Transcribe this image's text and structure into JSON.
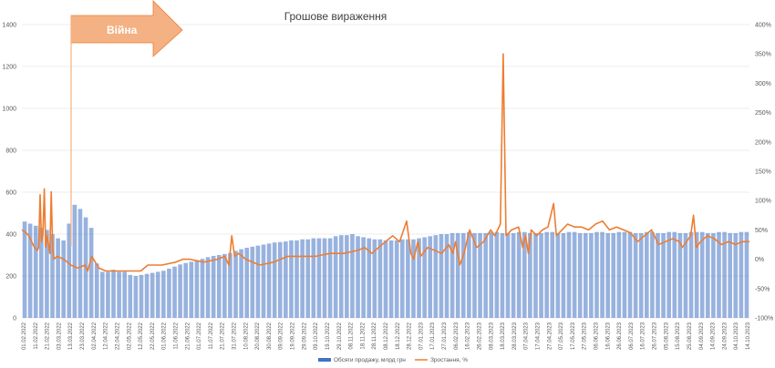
{
  "chart_data": {
    "type": "bar",
    "title": "Грошове вираження",
    "annotation": "Війна",
    "y_left": {
      "min": 0,
      "max": 1400,
      "ticks": [
        0,
        200,
        400,
        600,
        800,
        1000,
        1200,
        1400
      ]
    },
    "y_right": {
      "min": -100,
      "max": 400,
      "ticks": [
        "-100%",
        "-50%",
        "0%",
        "50%",
        "100%",
        "150%",
        "200%",
        "250%",
        "300%",
        "350%",
        "400%"
      ]
    },
    "x_ticks": [
      "01.02.2022",
      "11.02.2022",
      "21.02.2022",
      "03.03.2022",
      "13.03.2022",
      "23.03.2022",
      "02.04.2022",
      "12.04.2022",
      "22.04.2022",
      "02.05.2022",
      "12.05.2022",
      "22.05.2022",
      "01.06.2022",
      "11.06.2022",
      "21.06.2022",
      "01.07.2022",
      "11.07.2022",
      "21.07.2022",
      "31.07.2022",
      "10.08.2022",
      "20.08.2022",
      "30.08.2022",
      "09.09.2022",
      "19.09.2022",
      "29.09.2022",
      "09.10.2022",
      "19.10.2022",
      "29.10.2022",
      "08.11.2022",
      "18.11.2022",
      "28.11.2022",
      "08.12.2022",
      "18.12.2022",
      "28.12.2022",
      "07.01.2023",
      "17.01.2023",
      "27.01.2023",
      "06.02.2023",
      "16.02.2023",
      "26.02.2023",
      "08.03.2023",
      "18.03.2023",
      "28.03.2023",
      "07.04.2023",
      "17.04.2023",
      "27.04.2023",
      "07.05.2023",
      "17.05.2023",
      "27.05.2023",
      "06.06.2023",
      "16.06.2023",
      "26.06.2023",
      "06.07.2023",
      "16.07.2023",
      "26.07.2023",
      "05.08.2023",
      "15.08.2023",
      "25.08.2023",
      "04.09.2023",
      "14.09.2023",
      "24.09.2023",
      "04.10.2023",
      "14.10.2023"
    ],
    "series": [
      {
        "name": "Обсяги продажу, млрд грн",
        "kind": "bar",
        "color": "#4472C4",
        "values": [
          460,
          450,
          440,
          430,
          420,
          400,
          380,
          370,
          450,
          540,
          520,
          480,
          430,
          260,
          220,
          220,
          230,
          220,
          220,
          205,
          200,
          205,
          210,
          215,
          220,
          225,
          235,
          245,
          255,
          262,
          268,
          275,
          282,
          290,
          296,
          300,
          305,
          310,
          320,
          328,
          335,
          340,
          345,
          350,
          355,
          360,
          362,
          365,
          370,
          370,
          375,
          375,
          380,
          380,
          380,
          380,
          390,
          395,
          395,
          400,
          390,
          385,
          380,
          375,
          375,
          370,
          370,
          370,
          375,
          375,
          375,
          380,
          385,
          390,
          395,
          400,
          400,
          405,
          405,
          405,
          410,
          405,
          405,
          405,
          410,
          410,
          405,
          405,
          405,
          410,
          410,
          405,
          405,
          405,
          410,
          410,
          405,
          405,
          410,
          410,
          405,
          405,
          405,
          410,
          410,
          405,
          405,
          410,
          410,
          410,
          405,
          405,
          410,
          410,
          405,
          405,
          410,
          410,
          405,
          405,
          410,
          410,
          410,
          405,
          405,
          410,
          410,
          405,
          405,
          410,
          410
        ]
      },
      {
        "name": "Зростання, %",
        "kind": "line",
        "color": "#ED7D31",
        "axis": "right",
        "values": [
          [
            0,
            50
          ],
          [
            3,
            45
          ],
          [
            5,
            40
          ],
          [
            7,
            30
          ],
          [
            9,
            20
          ],
          [
            11,
            15
          ],
          [
            12,
            20
          ],
          [
            13,
            110
          ],
          [
            14,
            30
          ],
          [
            15,
            40
          ],
          [
            16,
            120
          ],
          [
            17,
            20
          ],
          [
            18,
            40
          ],
          [
            19,
            25
          ],
          [
            20,
            10
          ],
          [
            21,
            115
          ],
          [
            22,
            15
          ],
          [
            23,
            0
          ],
          [
            25,
            5
          ],
          [
            30,
            0
          ],
          [
            35,
            -10
          ],
          [
            40,
            -15
          ],
          [
            45,
            -10
          ],
          [
            47,
            -20
          ],
          [
            50,
            5
          ],
          [
            55,
            -15
          ],
          [
            60,
            -20
          ],
          [
            70,
            -20
          ],
          [
            80,
            -20
          ],
          [
            85,
            -20
          ],
          [
            90,
            -10
          ],
          [
            100,
            -10
          ],
          [
            110,
            -5
          ],
          [
            115,
            0
          ],
          [
            120,
            0
          ],
          [
            130,
            -5
          ],
          [
            140,
            0
          ],
          [
            145,
            5
          ],
          [
            148,
            -10
          ],
          [
            150,
            40
          ],
          [
            152,
            5
          ],
          [
            155,
            10
          ],
          [
            160,
            0
          ],
          [
            170,
            -10
          ],
          [
            180,
            -5
          ],
          [
            190,
            5
          ],
          [
            200,
            5
          ],
          [
            210,
            5
          ],
          [
            220,
            10
          ],
          [
            230,
            10
          ],
          [
            240,
            15
          ],
          [
            245,
            20
          ],
          [
            250,
            10
          ],
          [
            255,
            20
          ],
          [
            260,
            30
          ],
          [
            265,
            40
          ],
          [
            270,
            30
          ],
          [
            275,
            65
          ],
          [
            278,
            10
          ],
          [
            280,
            0
          ],
          [
            283,
            30
          ],
          [
            285,
            5
          ],
          [
            290,
            20
          ],
          [
            300,
            10
          ],
          [
            305,
            25
          ],
          [
            308,
            10
          ],
          [
            310,
            30
          ],
          [
            313,
            -10
          ],
          [
            316,
            10
          ],
          [
            320,
            50
          ],
          [
            325,
            20
          ],
          [
            330,
            30
          ],
          [
            335,
            50
          ],
          [
            338,
            40
          ],
          [
            340,
            50
          ],
          [
            342,
            60
          ],
          [
            344,
            350
          ],
          [
            346,
            40
          ],
          [
            350,
            50
          ],
          [
            355,
            55
          ],
          [
            358,
            20
          ],
          [
            360,
            40
          ],
          [
            362,
            10
          ],
          [
            364,
            50
          ],
          [
            368,
            40
          ],
          [
            372,
            50
          ],
          [
            376,
            55
          ],
          [
            380,
            95
          ],
          [
            382,
            40
          ],
          [
            386,
            50
          ],
          [
            390,
            60
          ],
          [
            395,
            55
          ],
          [
            400,
            55
          ],
          [
            405,
            50
          ],
          [
            410,
            60
          ],
          [
            415,
            65
          ],
          [
            420,
            50
          ],
          [
            425,
            55
          ],
          [
            430,
            50
          ],
          [
            435,
            45
          ],
          [
            440,
            30
          ],
          [
            445,
            40
          ],
          [
            450,
            50
          ],
          [
            455,
            25
          ],
          [
            460,
            30
          ],
          [
            465,
            35
          ],
          [
            470,
            30
          ],
          [
            472,
            20
          ],
          [
            475,
            30
          ],
          [
            478,
            40
          ],
          [
            480,
            75
          ],
          [
            482,
            20
          ],
          [
            485,
            30
          ],
          [
            490,
            40
          ],
          [
            495,
            35
          ],
          [
            500,
            25
          ],
          [
            505,
            30
          ],
          [
            510,
            25
          ],
          [
            515,
            30
          ],
          [
            520,
            30
          ]
        ]
      }
    ],
    "legend_position": "bottom"
  }
}
